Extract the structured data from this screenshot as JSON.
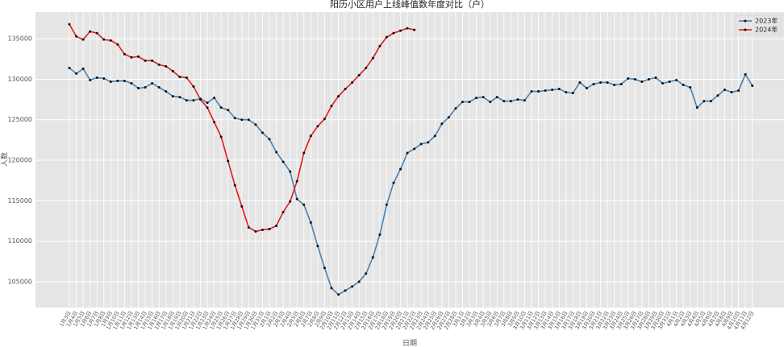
{
  "chart_data": {
    "type": "line",
    "title": "阳历小区用户上线峰值数年度对比（户）",
    "xlabel": "日期",
    "ylabel": "人数",
    "categories": [
      "1月3日",
      "1月4日",
      "1月5日",
      "1月6日",
      "1月7日",
      "1月8日",
      "1月9日",
      "1月10日",
      "1月11日",
      "1月12日",
      "1月13日",
      "1月14日",
      "1月15日",
      "1月16日",
      "1月17日",
      "1月18日",
      "1月19日",
      "1月20日",
      "1月21日",
      "1月22日",
      "1月23日",
      "1月24日",
      "1月25日",
      "1月26日",
      "1月27日",
      "1月28日",
      "1月29日",
      "1月30日",
      "1月31日",
      "2月1日",
      "2月2日",
      "2月3日",
      "2月4日",
      "2月5日",
      "2月6日",
      "2月7日",
      "2月8日",
      "2月9日",
      "2月10日",
      "2月11日",
      "2月12日",
      "2月13日",
      "2月14日",
      "2月15日",
      "2月16日",
      "2月17日",
      "2月18日",
      "2月19日",
      "2月20日",
      "2月21日",
      "2月22日",
      "2月23日",
      "2月24日",
      "2月25日",
      "2月26日",
      "2月27日",
      "2月28日",
      "3月1日",
      "3月2日",
      "3月3日",
      "3月4日",
      "3月5日",
      "3月6日",
      "3月7日",
      "3月8日",
      "3月9日",
      "3月10日",
      "3月11日",
      "3月12日",
      "3月13日",
      "3月14日",
      "3月15日",
      "3月16日",
      "3月17日",
      "3月18日",
      "3月19日",
      "3月20日",
      "3月21日",
      "3月22日",
      "3月23日",
      "3月24日",
      "3月25日",
      "3月26日",
      "3月27日",
      "3月28日",
      "3月29日",
      "3月30日",
      "3月31日",
      "4月1日",
      "4月2日",
      "4月3日",
      "4月4日",
      "4月5日",
      "4月6日",
      "4月7日",
      "4月8日",
      "4月9日",
      "4月10日",
      "4月11日",
      "4月12日"
    ],
    "series": [
      {
        "name": "2023年",
        "color": "#4682b4",
        "values": [
          131400,
          130700,
          131300,
          129900,
          130200,
          130100,
          129700,
          129800,
          129800,
          129500,
          128900,
          129000,
          129500,
          129000,
          128500,
          127900,
          127800,
          127400,
          127400,
          127600,
          127100,
          127700,
          126500,
          126200,
          125200,
          125000,
          125000,
          124400,
          123400,
          122600,
          121000,
          119800,
          118600,
          115200,
          114500,
          112300,
          109400,
          106700,
          104200,
          103400,
          103900,
          104400,
          105000,
          106000,
          108000,
          110800,
          114500,
          117200,
          118900,
          120900,
          121400,
          122000,
          122200,
          123000,
          124500,
          125300,
          126400,
          127200,
          127200,
          127700,
          127800,
          127200,
          127800,
          127300,
          127300,
          127500,
          127400,
          128500,
          128500,
          128600,
          128700,
          128800,
          128400,
          128300,
          129600,
          128900,
          129400,
          129600,
          129600,
          129300,
          129400,
          130100,
          130000,
          129700,
          130000,
          130200,
          129500,
          129700,
          129900,
          129300,
          129000,
          126500,
          127300,
          127300,
          128000,
          128700,
          128400,
          128600,
          130600,
          129200
        ]
      },
      {
        "name": "2024年",
        "color": "#e41a1c",
        "values": [
          136800,
          135300,
          134900,
          135900,
          135700,
          134900,
          134800,
          134300,
          133100,
          132700,
          132800,
          132300,
          132300,
          131800,
          131600,
          131000,
          130300,
          130200,
          129100,
          127500,
          126500,
          124700,
          122900,
          119900,
          116900,
          114300,
          111700,
          111200,
          111400,
          111500,
          111900,
          113600,
          114900,
          117400,
          120900,
          123000,
          124200,
          125100,
          126700,
          127900,
          128800,
          129600,
          130500,
          131400,
          132600,
          134100,
          135200,
          135700,
          136000,
          136300,
          136100,
          null,
          null,
          null,
          null,
          null,
          null,
          null,
          null,
          null,
          null,
          null,
          null,
          null,
          null,
          null,
          null,
          null,
          null,
          null,
          null,
          null,
          null,
          null,
          null,
          null,
          null,
          null,
          null,
          null,
          null,
          null,
          null,
          null,
          null,
          null,
          null,
          null,
          null,
          null,
          null,
          null,
          null,
          null,
          null,
          null,
          null,
          null,
          null,
          null
        ]
      }
    ],
    "ylim": [
      101800,
      138300
    ],
    "yticks": [
      105000,
      110000,
      115000,
      120000,
      125000,
      130000,
      135000
    ],
    "grid": true,
    "legend": "upper right"
  }
}
